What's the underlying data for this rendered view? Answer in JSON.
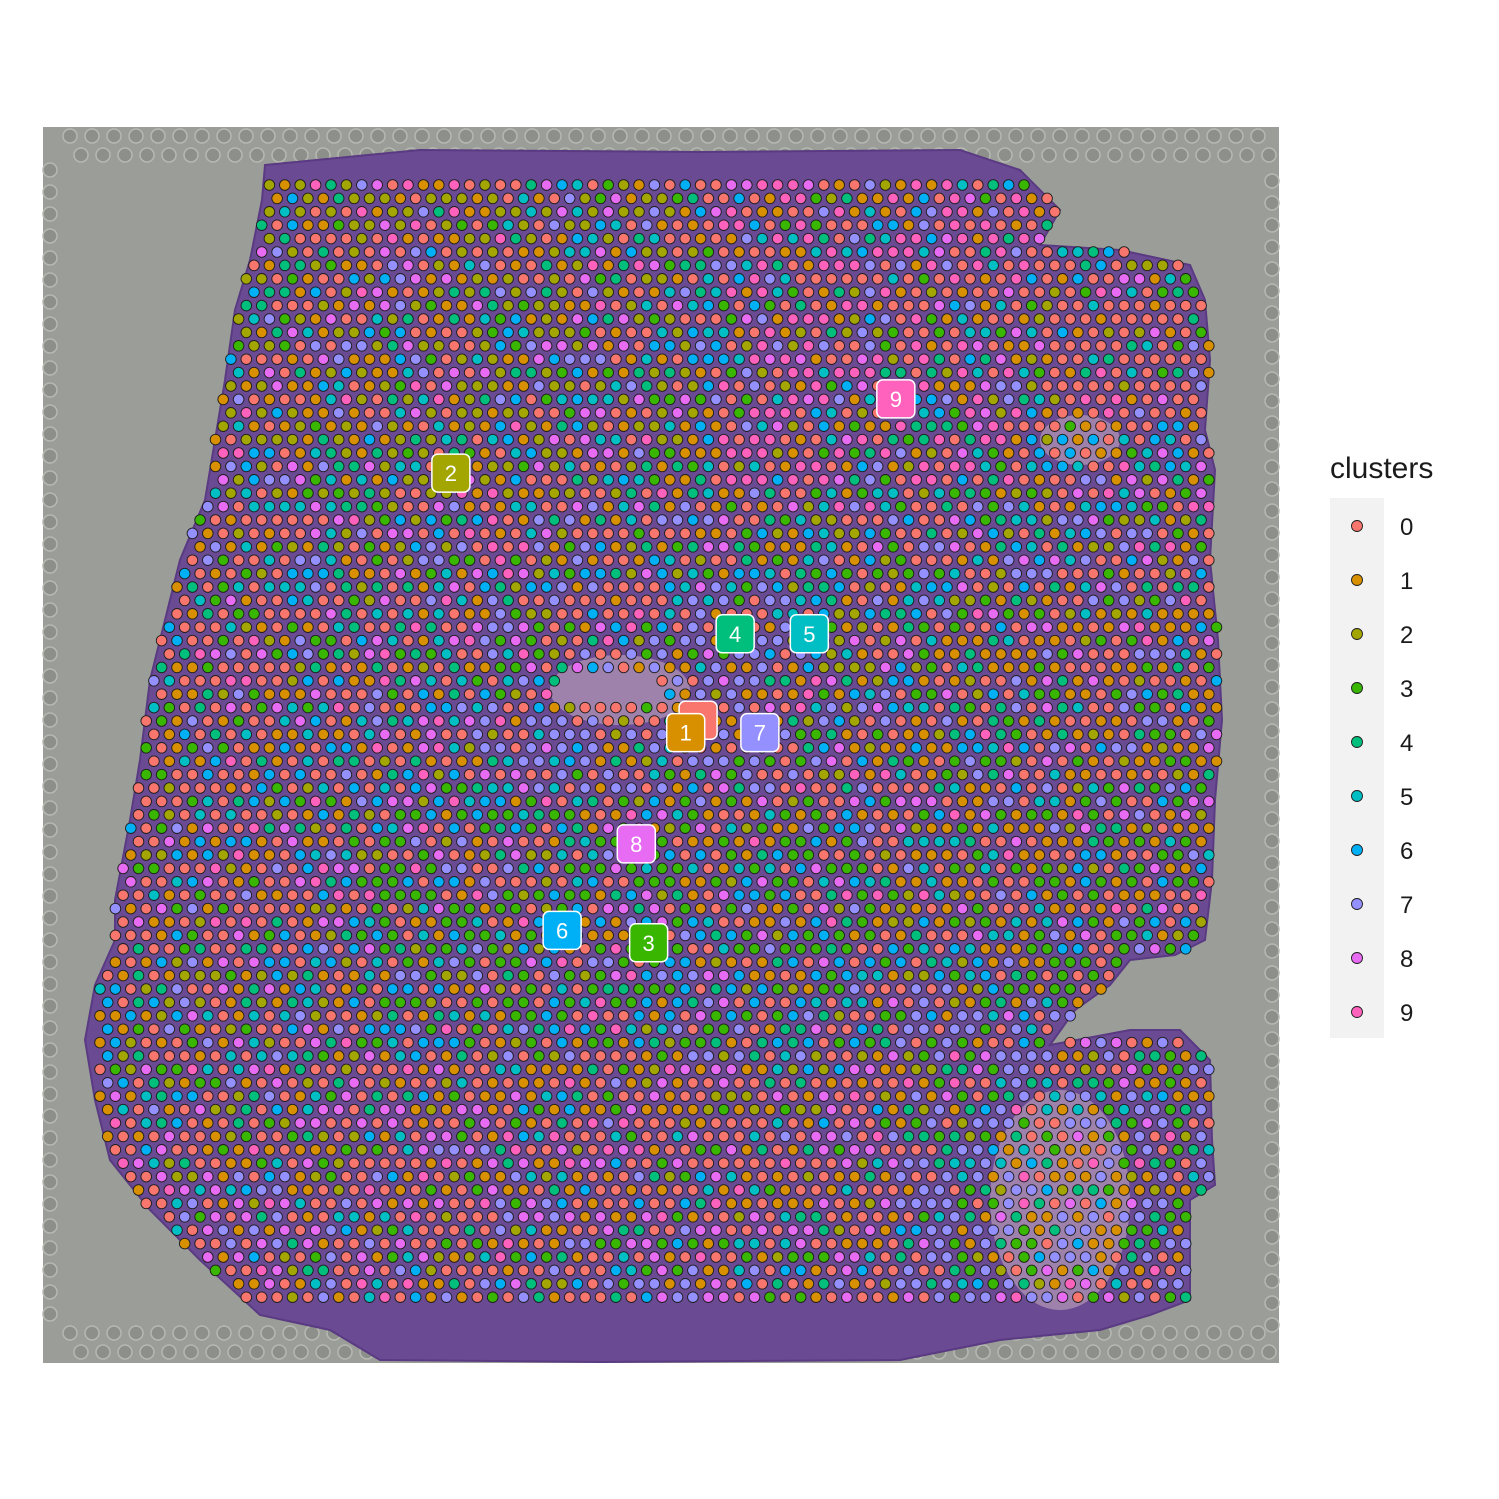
{
  "chart_data": {
    "type": "scatter",
    "description_kind": "spatial-feature-plot",
    "legend": {
      "title": "clusters",
      "position": "right",
      "entries": [
        {
          "label": "0",
          "color": "#F8766D"
        },
        {
          "label": "1",
          "color": "#D89000"
        },
        {
          "label": "2",
          "color": "#A3A500"
        },
        {
          "label": "3",
          "color": "#39B600"
        },
        {
          "label": "4",
          "color": "#00BF7D"
        },
        {
          "label": "5",
          "color": "#00BFC4"
        },
        {
          "label": "6",
          "color": "#00B0F6"
        },
        {
          "label": "7",
          "color": "#9590FF"
        },
        {
          "label": "8",
          "color": "#E76BF3"
        },
        {
          "label": "9",
          "color": "#FF62BC"
        }
      ]
    },
    "cluster_labels": [
      {
        "label": "0",
        "color": "#F8766D",
        "x": 0.53,
        "y": 0.48
      },
      {
        "label": "1",
        "color": "#D89000",
        "x": 0.52,
        "y": 0.49
      },
      {
        "label": "2",
        "color": "#A3A500",
        "x": 0.33,
        "y": 0.28
      },
      {
        "label": "3",
        "color": "#39B600",
        "x": 0.49,
        "y": 0.66
      },
      {
        "label": "4",
        "color": "#00BF7D",
        "x": 0.56,
        "y": 0.41
      },
      {
        "label": "5",
        "color": "#00BFC4",
        "x": 0.62,
        "y": 0.41
      },
      {
        "label": "6",
        "color": "#00B0F6",
        "x": 0.42,
        "y": 0.65
      },
      {
        "label": "7",
        "color": "#9590FF",
        "x": 0.58,
        "y": 0.49
      },
      {
        "label": "8",
        "color": "#E76BF3",
        "x": 0.48,
        "y": 0.58
      },
      {
        "label": "9",
        "color": "#FF62BC",
        "x": 0.69,
        "y": 0.22
      }
    ],
    "background": "tissue-histology-image",
    "grid": false
  },
  "colors": {
    "tissue": "#6a4a92",
    "slide": "#9b9e98",
    "legend_bg": "#f2f2f2"
  }
}
